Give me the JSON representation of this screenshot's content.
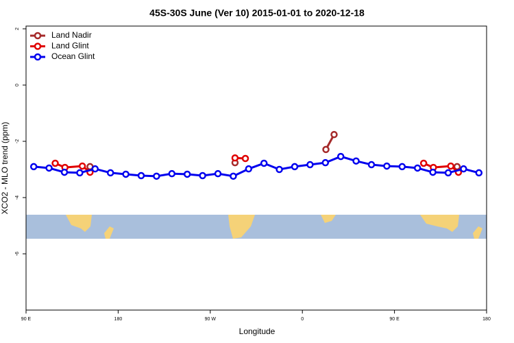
{
  "chart_data": {
    "type": "line",
    "title": "45S-30S June (Ver 10)   2015-01-01 to 2020-12-18",
    "x_label": "Longitude",
    "y_label": "XCO2 - MLO trend (ppm)",
    "xlim": [
      90,
      540
    ],
    "ylim": [
      -8,
      2
    ],
    "xticks": [
      {
        "value": 90,
        "label": "90 E"
      },
      180,
      {
        "value": 270,
        "label": "90 W"
      },
      {
        "value": 360,
        "label": "0"
      },
      {
        "value": 450,
        "label": "90 E"
      },
      {
        "value": 540,
        "label": "180"
      }
    ],
    "yticks": [
      -6,
      -4,
      -2,
      0,
      2
    ],
    "legend": "top-left",
    "series": [
      {
        "name": "Land Nadir",
        "color": "#a52a2a",
        "x": [
          152.5,
          null,
          294.2,
          null,
          383,
          391,
          null,
          511.2
        ],
        "values": [
          -2.9,
          null,
          -2.76,
          null,
          -2.29,
          -1.76,
          null,
          -2.9
        ]
      },
      {
        "name": "Land Glint",
        "color": "#e00000",
        "x": [
          118.5,
          128,
          145,
          152.5,
          null,
          294.2,
          304.3,
          null,
          478.5,
          488,
          505,
          512.5
        ],
        "values": [
          -2.78,
          -2.93,
          -2.88,
          -3.1,
          null,
          -2.59,
          -2.61,
          null,
          -2.78,
          -2.93,
          -2.88,
          -3.1
        ]
      },
      {
        "name": "Ocean Glint",
        "color": "#0000ee",
        "x": [
          97.5,
          112.5,
          127.5,
          142.5,
          157.5,
          172.5,
          187.5,
          202.5,
          217.5,
          232.5,
          247.5,
          262.5,
          277.5,
          292.5,
          307.5,
          322.5,
          337.5,
          352.5,
          367.5,
          382.5,
          397.5,
          412.5,
          427.5,
          442.5,
          457.5,
          472.5,
          487.5,
          502.5,
          517.5,
          532.5
        ],
        "values": [
          -2.9,
          -2.95,
          -3.1,
          -3.12,
          -2.98,
          -3.12,
          -3.17,
          -3.22,
          -3.24,
          -3.15,
          -3.17,
          -3.22,
          -3.15,
          -3.24,
          -2.98,
          -2.78,
          -3.0,
          -2.9,
          -2.83,
          -2.76,
          -2.54,
          -2.7,
          -2.83,
          -2.88,
          -2.9,
          -2.95,
          -3.1,
          -3.12,
          -2.98,
          -3.12
        ]
      }
    ]
  }
}
